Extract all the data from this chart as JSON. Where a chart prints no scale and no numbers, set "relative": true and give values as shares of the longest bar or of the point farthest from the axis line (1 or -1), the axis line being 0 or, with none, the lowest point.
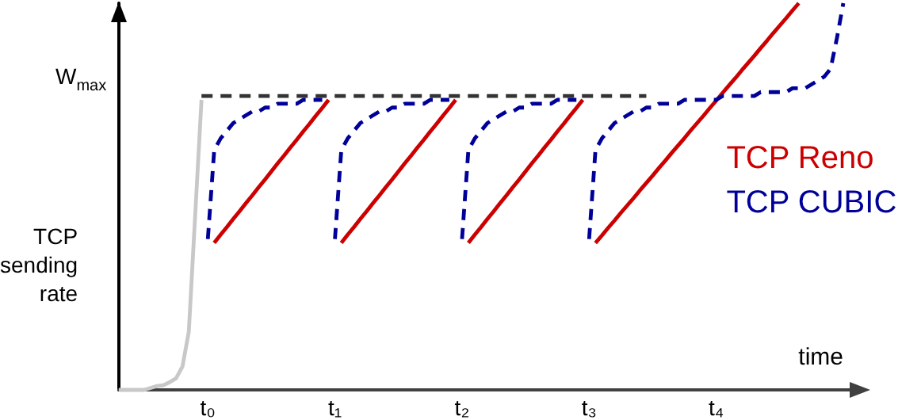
{
  "chart_data": {
    "type": "line",
    "relative": true,
    "ylabel": "TCP sending rate",
    "xlabel": "time",
    "marker": "none",
    "legend": "right",
    "grid": false,
    "categories": [
      null,
      null,
      null,
      null,
      null,
      null,
      null,
      null,
      null,
      null,
      null,
      null,
      null,
      null,
      "t₀",
      null,
      null,
      null,
      null,
      null,
      null,
      null,
      null,
      null,
      null,
      null,
      null,
      null,
      null,
      null,
      null,
      null,
      null,
      null,
      "t₁",
      null,
      null,
      null,
      null,
      null,
      null,
      null,
      null,
      null,
      null,
      null,
      null,
      null,
      null,
      null,
      null,
      null,
      null,
      null,
      "t₂",
      null,
      null,
      null,
      null,
      null,
      null,
      null,
      null,
      null,
      null,
      null,
      null,
      null,
      null,
      null,
      null,
      null,
      null,
      null,
      "t₃",
      null,
      null,
      null,
      null,
      null,
      null,
      null,
      null,
      null,
      null,
      null,
      null,
      null,
      null,
      null,
      null,
      null,
      null,
      null,
      "t₄",
      null,
      null,
      null,
      null,
      null,
      null,
      null,
      null,
      null,
      null,
      null,
      null,
      null,
      null,
      null,
      null,
      null,
      null,
      null,
      null,
      null,
      null
    ],
    "annotations": [
      "W$_{max}$"
    ],
    "series": [
      {
        "color": "#c8c8c8",
        "line_style": "solid",
        "values": [
          0,
          0,
          0,
          0,
          0,
          0.005,
          0.01,
          0.012,
          0.02,
          0.03,
          0.06,
          0.15,
          0.45,
          0.75,
          null,
          null,
          null,
          null,
          null,
          null,
          null,
          null,
          null,
          null,
          null,
          null,
          null,
          null,
          null,
          null,
          null,
          null,
          null,
          null,
          null,
          null,
          null,
          null,
          null,
          null,
          null,
          null,
          null,
          null,
          null,
          null,
          null,
          null,
          null,
          null,
          null,
          null,
          null,
          null,
          null,
          null,
          null,
          null,
          null,
          null,
          null,
          null,
          null,
          null,
          null,
          null,
          null,
          null,
          null,
          null,
          null,
          null,
          null,
          null,
          null,
          null,
          null,
          null,
          null,
          null,
          null,
          null,
          null,
          null,
          null,
          null,
          null,
          null,
          null,
          null,
          null,
          null,
          null,
          null,
          null,
          null,
          null,
          null,
          null,
          null,
          null,
          null,
          null,
          null,
          null,
          null,
          null,
          null,
          null,
          null,
          null,
          null,
          null,
          null,
          null,
          null,
          null
        ]
      },
      {
        "color": "#333333",
        "line_style": "dashed",
        "values": [
          null,
          null,
          null,
          null,
          null,
          null,
          null,
          null,
          null,
          null,
          null,
          null,
          null,
          0.76,
          0.76,
          0.76,
          0.76,
          0.76,
          0.76,
          0.76,
          0.76,
          0.76,
          0.76,
          0.76,
          0.76,
          0.76,
          0.76,
          0.76,
          0.76,
          0.76,
          0.76,
          0.76,
          0.76,
          0.76,
          0.76,
          0.76,
          0.76,
          0.76,
          0.76,
          0.76,
          0.76,
          0.76,
          0.76,
          0.76,
          0.76,
          0.76,
          0.76,
          0.76,
          0.76,
          0.76,
          0.76,
          0.76,
          0.76,
          0.76,
          0.76,
          0.76,
          0.76,
          0.76,
          0.76,
          0.76,
          0.76,
          0.76,
          0.76,
          0.76,
          0.76,
          0.76,
          0.76,
          0.76,
          0.76,
          0.76,
          0.76,
          0.76,
          0.76,
          0.76,
          0.76,
          0.76,
          0.76,
          0.76,
          0.76,
          0.76,
          0.76,
          0.76,
          0.76,
          0.76,
          null,
          null,
          null,
          null,
          null,
          null,
          null,
          null,
          null,
          null,
          null,
          null,
          null,
          null,
          null,
          null,
          null,
          null,
          null,
          null,
          null,
          null,
          null,
          null,
          null,
          null,
          null,
          null,
          null,
          null,
          null,
          null,
          null
        ]
      },
      {
        "name": "TCP Reno",
        "color": "#cc0000",
        "line_style": "solid",
        "values": [
          null,
          null,
          null,
          null,
          null,
          null,
          null,
          null,
          null,
          null,
          null,
          null,
          null,
          null,
          null,
          0.38,
          0.401,
          0.421,
          0.442,
          0.462,
          0.483,
          0.503,
          0.524,
          0.544,
          0.565,
          0.586,
          0.606,
          0.627,
          0.647,
          0.668,
          0.688,
          0.709,
          0.729,
          0.75,
          null,
          0.38,
          0.401,
          0.421,
          0.442,
          0.462,
          0.483,
          0.503,
          0.524,
          0.544,
          0.565,
          0.586,
          0.606,
          0.627,
          0.647,
          0.668,
          0.688,
          0.709,
          0.729,
          0.75,
          null,
          0.38,
          0.401,
          0.421,
          0.442,
          0.462,
          0.483,
          0.503,
          0.524,
          0.544,
          0.565,
          0.586,
          0.606,
          0.627,
          0.647,
          0.668,
          0.688,
          0.709,
          0.729,
          0.75,
          null,
          0.38,
          0.399,
          0.419,
          0.438,
          0.458,
          0.477,
          0.496,
          0.516,
          0.535,
          0.554,
          0.574,
          0.593,
          0.613,
          0.632,
          0.651,
          0.671,
          0.69,
          0.709,
          0.729,
          0.748,
          0.768,
          0.787,
          0.806,
          0.826,
          0.845,
          0.864,
          0.884,
          0.903,
          0.923,
          0.942,
          0.961,
          0.981,
          1,
          null,
          null,
          null,
          null,
          null,
          null,
          null,
          null,
          null
        ]
      },
      {
        "name": "TCP CUBIC",
        "color": "#000099",
        "line_style": "dashed",
        "values": [
          null,
          null,
          null,
          null,
          null,
          null,
          null,
          null,
          null,
          null,
          null,
          null,
          null,
          null,
          0.39,
          0.62,
          0.65,
          0.67,
          0.69,
          0.7,
          0.71,
          0.72,
          0.72,
          0.73,
          0.73,
          0.74,
          0.74,
          0.74,
          0.74,
          0.75,
          0.75,
          0.75,
          0.75,
          null,
          0.39,
          0.62,
          0.65,
          0.67,
          0.69,
          0.7,
          0.71,
          0.72,
          0.72,
          0.73,
          0.73,
          0.74,
          0.74,
          0.74,
          0.74,
          0.75,
          0.75,
          0.75,
          0.75,
          null,
          0.39,
          0.62,
          0.65,
          0.67,
          0.69,
          0.7,
          0.71,
          0.72,
          0.72,
          0.73,
          0.73,
          0.74,
          0.74,
          0.74,
          0.74,
          0.75,
          0.75,
          0.75,
          0.75,
          null,
          0.39,
          0.62,
          0.65,
          0.67,
          0.69,
          0.7,
          0.71,
          0.72,
          0.72,
          0.73,
          0.73,
          0.74,
          0.74,
          0.74,
          0.74,
          0.75,
          0.75,
          0.75,
          0.75,
          0.75,
          0.75,
          0.76,
          0.76,
          0.76,
          0.76,
          0.76,
          0.76,
          0.77,
          0.77,
          0.77,
          0.77,
          0.77,
          0.78,
          0.78,
          0.78,
          0.79,
          0.8,
          0.81,
          0.83,
          0.91,
          1,
          null,
          null
        ]
      }
    ]
  }
}
